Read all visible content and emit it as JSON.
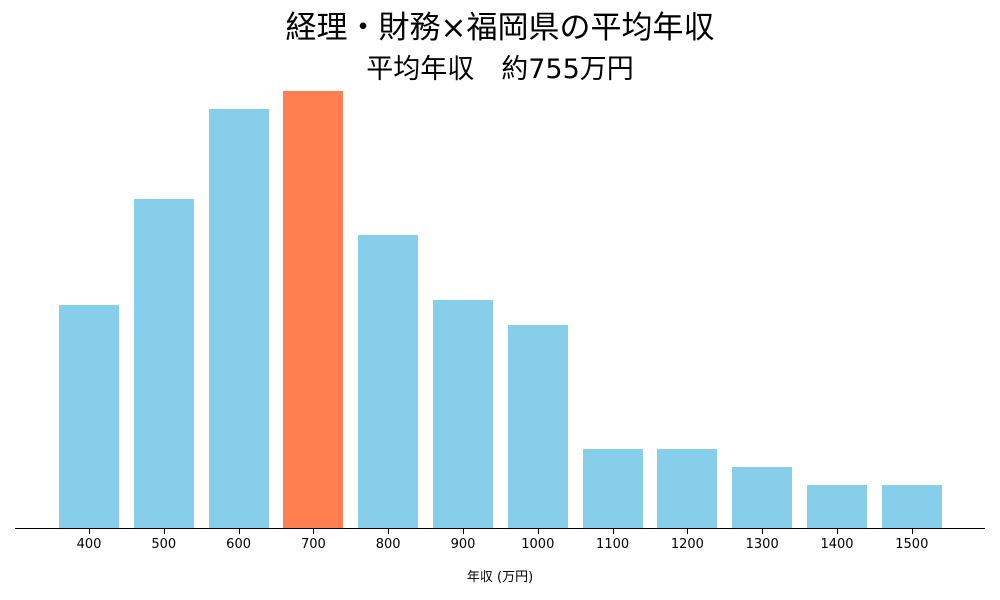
{
  "chart_data": {
    "type": "bar",
    "title": "経理・財務×福岡県の平均年収",
    "subtitle": "平均年収　約755万円",
    "xlabel": "年収 (万円)",
    "ylabel": "",
    "grid": false,
    "legend": null,
    "categories": [
      "400",
      "500",
      "600",
      "700",
      "800",
      "900",
      "1000",
      "1100",
      "1200",
      "1300",
      "1400",
      "1500"
    ],
    "values": [
      224,
      330,
      420,
      438,
      294,
      229,
      204,
      80,
      80,
      62,
      44,
      44
    ],
    "value_note": "relative bar heights in pixels (no y-axis shown)",
    "highlight_category": "700",
    "colors": {
      "bar": "#87CEEB",
      "highlight": "#FF7F50",
      "axis": "#000000"
    }
  }
}
